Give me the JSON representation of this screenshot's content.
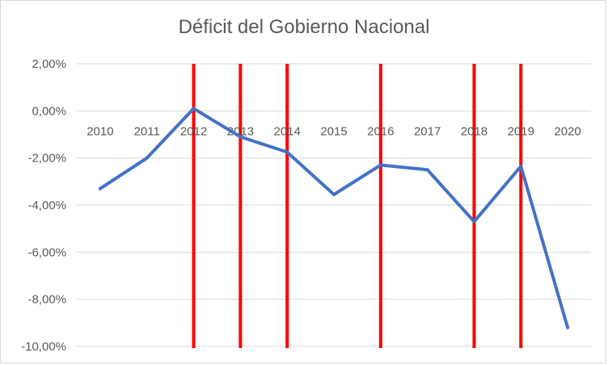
{
  "chart_data": {
    "type": "line",
    "title": "Déficit del Gobierno Nacional",
    "xlabel": "",
    "ylabel": "",
    "categories": [
      "2010",
      "2011",
      "2012",
      "2013",
      "2014",
      "2015",
      "2016",
      "2017",
      "2018",
      "2019",
      "2020"
    ],
    "series": [
      {
        "values": [
          -3.3,
          -2.0,
          0.1,
          -1.1,
          -1.75,
          -3.55,
          -2.3,
          -2.5,
          -4.7,
          -2.35,
          -9.2
        ]
      }
    ],
    "ylim": [
      -10,
      2
    ],
    "y_ticks": [
      "2,00%",
      "0,00%",
      "-2,00%",
      "-4,00%",
      "-6,00%",
      "-8,00%",
      "-10,00%"
    ],
    "y_tick_values": [
      2,
      0,
      -2,
      -4,
      -6,
      -8,
      -10
    ],
    "markers": [
      "2012",
      "2013",
      "2014",
      "2016",
      "2018",
      "2019"
    ],
    "grid": true,
    "legend": "none",
    "colors": {
      "line": "#4472C4",
      "marker": "#FF0000",
      "grid": "#d9d9d9",
      "text": "#595959"
    }
  }
}
